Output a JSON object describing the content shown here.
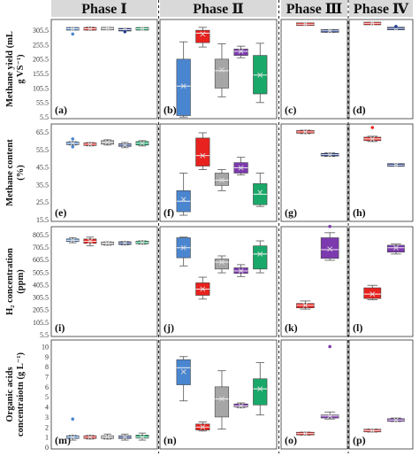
{
  "figure": {
    "phase_headers": [
      "Phase Ⅰ",
      "Phase Ⅱ",
      "Phase Ⅲ",
      "Phase Ⅳ"
    ],
    "row_labels": [
      [
        "Methane yield (mL",
        "g VS⁻¹)"
      ],
      [
        "Methane content",
        "(%)"
      ],
      [
        "H₂ concentration",
        "(ppm)"
      ],
      [
        "Organic acids",
        "concentraiotn (g L⁻¹)"
      ]
    ],
    "panel_letters": [
      [
        "(a)",
        "(b)",
        "(c)",
        "(d)"
      ],
      [
        "(e)",
        "(f)",
        "(g)",
        "(h)"
      ],
      [
        "(i)",
        "(j)",
        "(k)",
        "(l)"
      ],
      [
        "(m)",
        "(n)",
        "(o)",
        "(p)"
      ]
    ],
    "colors": {
      "blue": "#4a86d0",
      "red": "#e8221e",
      "gray": "#a6a6a6",
      "purple": "#7c3aae",
      "green": "#19a869",
      "navy": "#1f3a8a",
      "header_bg": "#d9d9d9",
      "frame": "#333333"
    }
  },
  "chart_data": [
    {
      "type": "box",
      "title": "Methane yield",
      "ylabel": "Methane yield (mL g VS⁻¹)",
      "yticks": [
        "305.5",
        "255.5",
        "205.5",
        "155.5",
        "105.5",
        "55.5",
        "5.5"
      ],
      "ytick_values": [
        305.5,
        255.5,
        205.5,
        155.5,
        105.5,
        55.5,
        5.5
      ],
      "ylim": [
        5.5,
        330
      ],
      "phases": [
        {
          "panel": "(a)",
          "boxes": [
            {
              "color": "blue",
              "min": 306,
              "q1": 308,
              "median": 310,
              "q3": 312,
              "max": 314,
              "mean": 310,
              "outliers": [
                292
              ]
            },
            {
              "color": "red",
              "min": 305,
              "q1": 307,
              "median": 310,
              "q3": 313,
              "max": 316,
              "mean": 310,
              "outliers": []
            },
            {
              "color": "gray",
              "min": 307,
              "q1": 309,
              "median": 311,
              "q3": 312,
              "max": 314,
              "mean": 311,
              "outliers": []
            },
            {
              "color": "navy",
              "min": 303,
              "q1": 305,
              "median": 307,
              "q3": 309,
              "max": 311,
              "mean": 307,
              "outliers": [
                300
              ]
            },
            {
              "color": "green",
              "min": 308,
              "q1": 309,
              "median": 310,
              "q3": 311,
              "max": 313,
              "mean": 310,
              "outliers": []
            }
          ]
        },
        {
          "panel": "(b)",
          "boxes": [
            {
              "color": "blue",
              "min": 5,
              "q1": 10,
              "median": 112,
              "q3": 205,
              "max": 265,
              "mean": 112,
              "outliers": []
            },
            {
              "color": "red",
              "min": 247,
              "q1": 262,
              "median": 295,
              "q3": 305,
              "max": 315,
              "mean": 292,
              "outliers": []
            },
            {
              "color": "gray",
              "min": 75,
              "q1": 105,
              "median": 165,
              "q3": 205,
              "max": 258,
              "mean": 168,
              "outliers": []
            },
            {
              "color": "purple",
              "min": 210,
              "q1": 218,
              "median": 232,
              "q3": 240,
              "max": 250,
              "mean": 232,
              "outliers": []
            },
            {
              "color": "green",
              "min": 55,
              "q1": 85,
              "median": 150,
              "q3": 218,
              "max": 260,
              "mean": 150,
              "outliers": []
            }
          ]
        },
        {
          "panel": "(c)",
          "boxes": [
            {
              "color": "red",
              "min": 323,
              "q1": 324,
              "median": 326,
              "q3": 328,
              "max": 329,
              "mean": 326,
              "outliers": []
            },
            {
              "color": "navy",
              "min": 298,
              "q1": 300,
              "median": 303,
              "q3": 305,
              "max": 307,
              "mean": 303,
              "outliers": []
            }
          ]
        },
        {
          "panel": "(d)",
          "boxes": [
            {
              "color": "red",
              "min": 326,
              "q1": 327,
              "median": 329,
              "q3": 330,
              "max": 331,
              "mean": 329,
              "outliers": []
            },
            {
              "color": "navy",
              "min": 308,
              "q1": 309,
              "median": 311,
              "q3": 313,
              "max": 314,
              "mean": 311,
              "outliers": [
                318
              ]
            }
          ]
        }
      ]
    },
    {
      "type": "box",
      "title": "Methane content",
      "ylabel": "Methane content (%)",
      "yticks": [
        "65.5",
        "55.5",
        "45.5",
        "35.5",
        "25.5",
        "15.5"
      ],
      "ytick_values": [
        65.5,
        55.5,
        45.5,
        35.5,
        25.5,
        15.5
      ],
      "ylim": [
        15.5,
        68
      ],
      "phases": [
        {
          "panel": "(e)",
          "boxes": [
            {
              "color": "blue",
              "min": 58,
              "q1": 58.5,
              "median": 59,
              "q3": 59.5,
              "max": 60,
              "mean": 59,
              "outliers": [
                61.5,
                57
              ]
            },
            {
              "color": "red",
              "min": 57.5,
              "q1": 58,
              "median": 58.5,
              "q3": 59,
              "max": 59.5,
              "mean": 58.5,
              "outliers": []
            },
            {
              "color": "gray",
              "min": 58,
              "q1": 58.5,
              "median": 59.5,
              "q3": 60.5,
              "max": 61,
              "mean": 59.5,
              "outliers": []
            },
            {
              "color": "navy",
              "min": 56.5,
              "q1": 57.5,
              "median": 58,
              "q3": 58.5,
              "max": 59.5,
              "mean": 58,
              "outliers": []
            },
            {
              "color": "green",
              "min": 57.5,
              "q1": 58,
              "median": 59,
              "q3": 60,
              "max": 60.5,
              "mean": 59,
              "outliers": []
            }
          ]
        },
        {
          "panel": "(f)",
          "boxes": [
            {
              "color": "blue",
              "min": 18,
              "q1": 20,
              "median": 26,
              "q3": 32,
              "max": 42,
              "mean": 27,
              "outliers": []
            },
            {
              "color": "red",
              "min": 44,
              "q1": 46,
              "median": 52,
              "q3": 62,
              "max": 65,
              "mean": 52,
              "outliers": []
            },
            {
              "color": "gray",
              "min": 32,
              "q1": 35,
              "median": 38,
              "q3": 42,
              "max": 44,
              "mean": 38,
              "outliers": []
            },
            {
              "color": "purple",
              "min": 41,
              "q1": 42,
              "median": 45,
              "q3": 48,
              "max": 51,
              "mean": 45,
              "outliers": []
            },
            {
              "color": "green",
              "min": 23,
              "q1": 24,
              "median": 30,
              "q3": 36,
              "max": 42,
              "mean": 31,
              "outliers": []
            }
          ]
        },
        {
          "panel": "(g)",
          "boxes": [
            {
              "color": "red",
              "min": 64.5,
              "q1": 65,
              "median": 65.5,
              "q3": 66,
              "max": 66.5,
              "mean": 65.5,
              "outliers": []
            },
            {
              "color": "navy",
              "min": 51.5,
              "q1": 52,
              "median": 52.5,
              "q3": 53,
              "max": 53.5,
              "mean": 52.5,
              "outliers": []
            }
          ]
        },
        {
          "panel": "(h)",
          "boxes": [
            {
              "color": "red",
              "min": 60,
              "q1": 60.5,
              "median": 61.5,
              "q3": 62.5,
              "max": 63,
              "mean": 61.5,
              "outliers": [
                68
              ]
            },
            {
              "color": "navy",
              "min": 46,
              "q1": 46.3,
              "median": 46.6,
              "q3": 47,
              "max": 47.3,
              "mean": 46.6,
              "outliers": []
            }
          ]
        }
      ]
    },
    {
      "type": "box",
      "title": "H₂ concentration",
      "ylabel": "H₂ concentration (ppm)",
      "yticks": [
        "805.5",
        "705.5",
        "605.5",
        "505.5",
        "405.5",
        "305.5",
        "205.5",
        "105.5",
        "5.5"
      ],
      "ytick_values": [
        805.5,
        705.5,
        605.5,
        505.5,
        405.5,
        305.5,
        205.5,
        105.5,
        5.5
      ],
      "ylim": [
        5.5,
        840
      ],
      "phases": [
        {
          "panel": "(i)",
          "boxes": [
            {
              "color": "blue",
              "min": 740,
              "q1": 750,
              "median": 760,
              "q3": 770,
              "max": 780,
              "mean": 760,
              "outliers": []
            },
            {
              "color": "red",
              "min": 715,
              "q1": 735,
              "median": 752,
              "q3": 770,
              "max": 785,
              "mean": 752,
              "outliers": []
            },
            {
              "color": "gray",
              "min": 720,
              "q1": 728,
              "median": 735,
              "q3": 742,
              "max": 748,
              "mean": 735,
              "outliers": []
            },
            {
              "color": "navy",
              "min": 722,
              "q1": 730,
              "median": 737,
              "q3": 744,
              "max": 750,
              "mean": 737,
              "outliers": []
            },
            {
              "color": "green",
              "min": 728,
              "q1": 735,
              "median": 742,
              "q3": 750,
              "max": 756,
              "mean": 742,
              "outliers": []
            }
          ]
        },
        {
          "panel": "(j)",
          "boxes": [
            {
              "color": "blue",
              "min": 555,
              "q1": 620,
              "median": 700,
              "q3": 780,
              "max": 785,
              "mean": 700,
              "outliers": []
            },
            {
              "color": "red",
              "min": 290,
              "q1": 320,
              "median": 370,
              "q3": 420,
              "max": 465,
              "mean": 370,
              "outliers": []
            },
            {
              "color": "gray",
              "min": 500,
              "q1": 530,
              "median": 585,
              "q3": 610,
              "max": 635,
              "mean": 585,
              "outliers": []
            },
            {
              "color": "purple",
              "min": 470,
              "q1": 495,
              "median": 515,
              "q3": 540,
              "max": 565,
              "mean": 515,
              "outliers": []
            },
            {
              "color": "green",
              "min": 500,
              "q1": 530,
              "median": 650,
              "q3": 715,
              "max": 755,
              "mean": 650,
              "outliers": []
            }
          ]
        },
        {
          "panel": "(k)",
          "boxes": [
            {
              "color": "red",
              "min": 210,
              "q1": 220,
              "median": 240,
              "q3": 255,
              "max": 275,
              "mean": 240,
              "outliers": []
            },
            {
              "color": "purple",
              "min": 600,
              "q1": 615,
              "median": 685,
              "q3": 780,
              "max": 820,
              "mean": 690,
              "outliers": [
                870
              ]
            }
          ]
        },
        {
          "panel": "(l)",
          "boxes": [
            {
              "color": "red",
              "min": 285,
              "q1": 295,
              "median": 330,
              "q3": 380,
              "max": 400,
              "mean": 330,
              "outliers": []
            },
            {
              "color": "purple",
              "min": 650,
              "q1": 665,
              "median": 700,
              "q3": 720,
              "max": 730,
              "mean": 700,
              "outliers": []
            }
          ]
        }
      ]
    },
    {
      "type": "box",
      "title": "Organic acids concentration",
      "ylabel": "Organic acids concentraiotn (g L⁻¹)",
      "yticks": [
        "10",
        "9",
        "8",
        "7",
        "6",
        "5",
        "4",
        "3",
        "2",
        "1",
        "0"
      ],
      "ytick_values": [
        10,
        9,
        8,
        7,
        6,
        5,
        4,
        3,
        2,
        1,
        0
      ],
      "ylim": [
        0,
        10.3
      ],
      "phases": [
        {
          "panel": "(m)",
          "boxes": [
            {
              "color": "blue",
              "min": 0.7,
              "q1": 0.9,
              "median": 1.0,
              "q3": 1.1,
              "max": 1.2,
              "mean": 1.0,
              "outliers": [
                2.8
              ]
            },
            {
              "color": "red",
              "min": 0.8,
              "q1": 0.9,
              "median": 1.0,
              "q3": 1.1,
              "max": 1.2,
              "mean": 1.0,
              "outliers": []
            },
            {
              "color": "gray",
              "min": 0.8,
              "q1": 0.9,
              "median": 1.0,
              "q3": 1.1,
              "max": 1.3,
              "mean": 1.0,
              "outliers": []
            },
            {
              "color": "navy",
              "min": 0.7,
              "q1": 0.9,
              "median": 1.0,
              "q3": 1.1,
              "max": 1.3,
              "mean": 1.0,
              "outliers": []
            },
            {
              "color": "green",
              "min": 0.7,
              "q1": 0.9,
              "median": 1.0,
              "q3": 1.2,
              "max": 1.4,
              "mean": 1.0,
              "outliers": []
            }
          ]
        },
        {
          "panel": "(n)",
          "boxes": [
            {
              "color": "blue",
              "min": 4.6,
              "q1": 6.2,
              "median": 7.9,
              "q3": 8.7,
              "max": 9.0,
              "mean": 7.5,
              "outliers": []
            },
            {
              "color": "red",
              "min": 1.6,
              "q1": 1.7,
              "median": 2.0,
              "q3": 2.3,
              "max": 2.5,
              "mean": 2.0,
              "outliers": []
            },
            {
              "color": "gray",
              "min": 1.8,
              "q1": 3.0,
              "median": 4.8,
              "q3": 6.0,
              "max": 7.6,
              "mean": 4.8,
              "outliers": []
            },
            {
              "color": "purple",
              "min": 3.9,
              "q1": 4.0,
              "median": 4.1,
              "q3": 4.3,
              "max": 4.4,
              "mean": 4.1,
              "outliers": []
            },
            {
              "color": "green",
              "min": 3.2,
              "q1": 4.2,
              "median": 5.8,
              "q3": 6.8,
              "max": 8.4,
              "mean": 5.8,
              "outliers": []
            }
          ]
        },
        {
          "panel": "(o)",
          "boxes": [
            {
              "color": "red",
              "min": 1.2,
              "q1": 1.25,
              "median": 1.35,
              "q3": 1.45,
              "max": 1.5,
              "mean": 1.35,
              "outliers": []
            },
            {
              "color": "purple",
              "min": 2.8,
              "q1": 2.9,
              "median": 3.1,
              "q3": 3.2,
              "max": 3.5,
              "mean": 3.1,
              "outliers": [
                10.0
              ]
            }
          ]
        },
        {
          "panel": "(p)",
          "boxes": [
            {
              "color": "red",
              "min": 1.5,
              "q1": 1.55,
              "median": 1.65,
              "q3": 1.75,
              "max": 1.8,
              "mean": 1.65,
              "outliers": []
            },
            {
              "color": "purple",
              "min": 2.55,
              "q1": 2.6,
              "median": 2.7,
              "q3": 2.8,
              "max": 2.9,
              "mean": 2.7,
              "outliers": []
            }
          ]
        }
      ]
    }
  ]
}
